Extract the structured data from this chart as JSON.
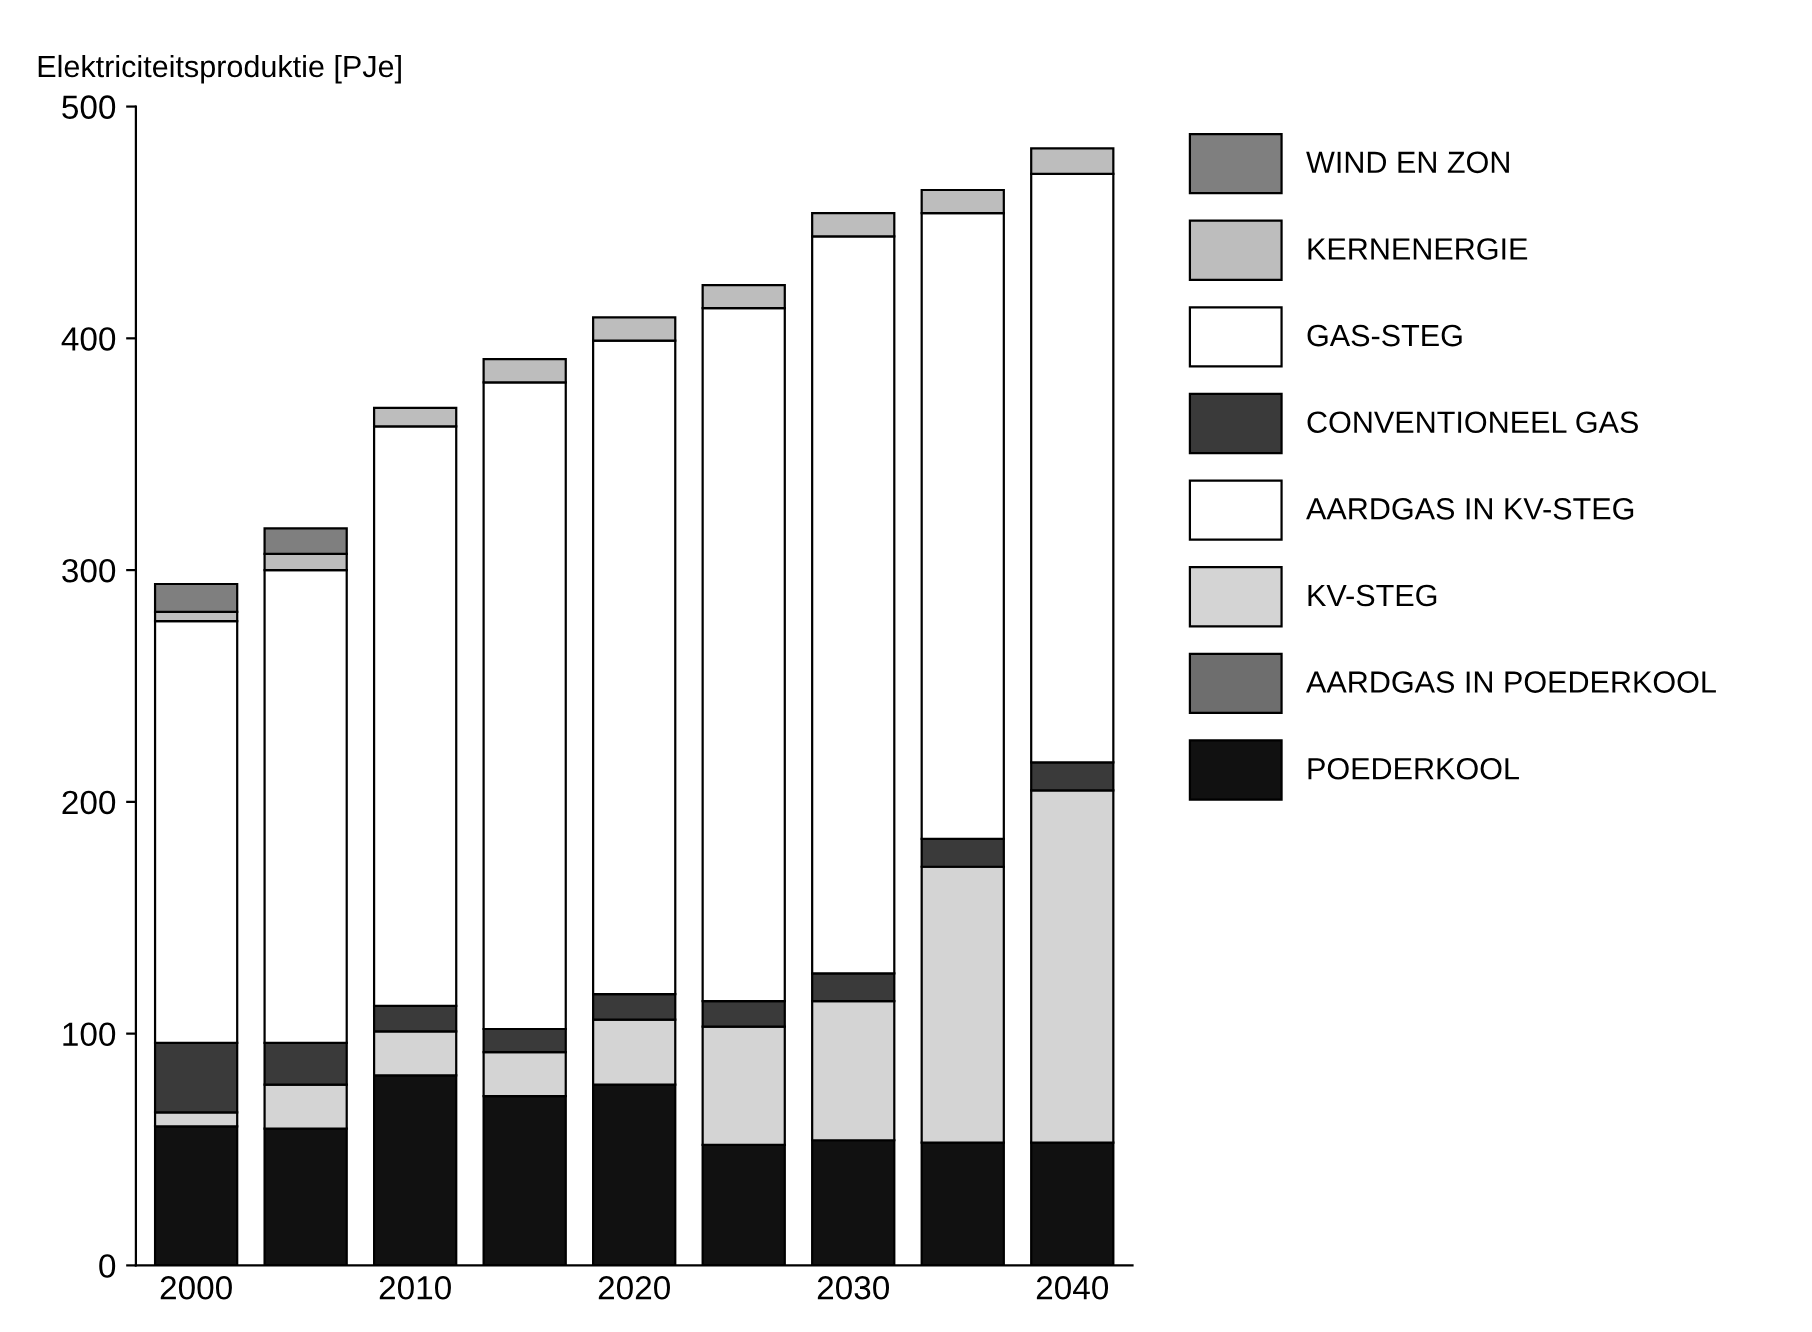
{
  "chart_data": {
    "type": "bar",
    "stacked": true,
    "ylabel": "Elektriciteitsproduktie [PJe]",
    "categories": [
      "2000",
      null,
      "2010",
      null,
      "2020",
      null,
      "2030",
      null,
      "2040"
    ],
    "series": [
      {
        "name": "POEDERKOOL",
        "color": "#111111",
        "values": [
          60,
          59,
          82,
          73,
          78,
          52,
          54,
          53,
          53
        ]
      },
      {
        "name": "AARDGAS IN POEDERKOOL",
        "color": "#6e6e6e",
        "values": [
          0,
          0,
          0,
          0,
          0,
          0,
          0,
          0,
          0
        ]
      },
      {
        "name": "KV-STEG",
        "color": "#d4d4d4",
        "values": [
          6,
          19,
          19,
          19,
          28,
          51,
          60,
          119,
          152
        ]
      },
      {
        "name": "AARDGAS IN KV-STEG",
        "color": "#ffffff",
        "values": [
          0,
          0,
          0,
          0,
          0,
          0,
          0,
          0,
          0
        ]
      },
      {
        "name": "CONVENTIONEEL GAS",
        "color": "#3a3a3a",
        "values": [
          30,
          18,
          11,
          10,
          11,
          11,
          12,
          12,
          12
        ]
      },
      {
        "name": "GAS-STEG",
        "color": "#ffffff",
        "values": [
          182,
          204,
          250,
          279,
          282,
          299,
          318,
          270,
          254
        ]
      },
      {
        "name": "KERNENERGIE",
        "color": "#bdbdbd",
        "values": [
          4,
          7,
          8,
          10,
          10,
          10,
          10,
          10,
          11
        ]
      },
      {
        "name": "WIND EN ZON",
        "color": "#7f7f7f",
        "values": [
          12,
          11,
          0,
          0,
          0,
          0,
          0,
          0,
          0
        ]
      }
    ],
    "ylim": [
      0,
      500
    ],
    "yticks": [
      0,
      100,
      200,
      300,
      400,
      500
    ],
    "legend": "right",
    "grid": false
  }
}
